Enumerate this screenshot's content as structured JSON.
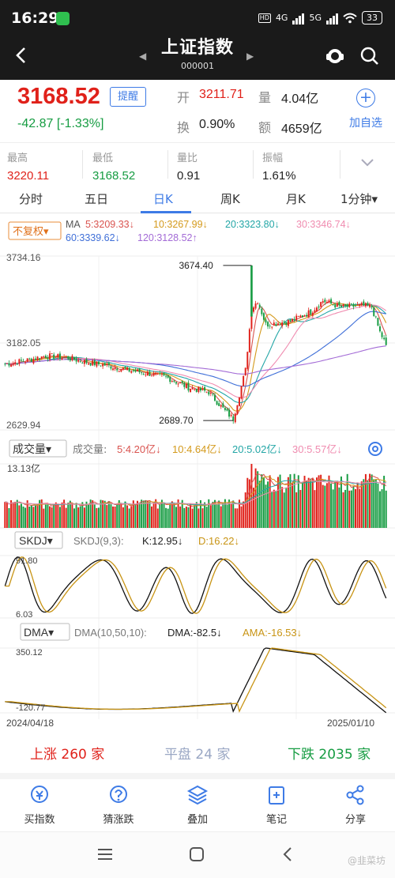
{
  "status_bar": {
    "time": "16:29",
    "network_a": "4G",
    "network_b": "5G",
    "tag_hd": "HD",
    "battery": "33"
  },
  "header": {
    "title": "上证指数",
    "code": "000001"
  },
  "quote": {
    "price": "3168.52",
    "change": "-42.87  [-1.33%]",
    "remind_label": "提醒",
    "open_label": "开",
    "open": "3211.71",
    "volume_label": "量",
    "volume": "4.04亿",
    "turnover_label": "换",
    "turnover": "0.90%",
    "amount_label": "额",
    "amount": "4659亿",
    "add_fav_label": "加自选"
  },
  "stats": [
    {
      "label": "最高",
      "value": "3220.11",
      "color": "#e0211a"
    },
    {
      "label": "最低",
      "value": "3168.52",
      "color": "#169c42"
    },
    {
      "label": "量比",
      "value": "0.91",
      "color": "#222222"
    },
    {
      "label": "振幅",
      "value": "1.61%",
      "color": "#222222"
    }
  ],
  "tabs": [
    "分时",
    "五日",
    "日K",
    "周K",
    "月K",
    "1分钟▾"
  ],
  "active_tab": "日K",
  "chart_data": {
    "type": "candlestick",
    "price_panel": {
      "rights_label": "不复权▾",
      "ma_label": "MA",
      "ma_values": [
        {
          "text": "5:3209.33↓",
          "color": "#d9534f"
        },
        {
          "text": "10:3267.99↓",
          "color": "#d49a1c"
        },
        {
          "text": "20:3323.80↓",
          "color": "#23a6a6"
        },
        {
          "text": "30:3346.74↓",
          "color": "#f08cb0"
        },
        {
          "text": "60:3339.62↓",
          "color": "#3f6fd8"
        },
        {
          "text": "120:3128.52↑",
          "color": "#a36bd6"
        }
      ],
      "ylim": [
        2629.94,
        3734.16
      ],
      "y_ticks": [
        "3734.16",
        "3182.05",
        "2629.94"
      ],
      "annotations": {
        "high": "3674.40",
        "low": "2689.70"
      },
      "ohlc_anchor_prices": [
        3050,
        3070,
        3100,
        3090,
        3060,
        3040,
        3010,
        2990,
        2960,
        2900,
        2870,
        2750,
        2700,
        3010,
        3400,
        3450,
        3300,
        3320,
        3380,
        3450,
        3410,
        3420,
        3410,
        3250,
        3170
      ],
      "ohlc_anchor_index": [
        0,
        10,
        20,
        30,
        40,
        50,
        60,
        70,
        80,
        90,
        100,
        108,
        112,
        118,
        121,
        124,
        128,
        140,
        150,
        156,
        165,
        175,
        180,
        184,
        187
      ]
    },
    "volume_panel": {
      "label": "成交量▾",
      "legend_prefix": "成交量:",
      "ma_values": [
        {
          "text": "5:4.20亿↓",
          "color": "#d9534f"
        },
        {
          "text": "10:4.64亿↓",
          "color": "#d49a1c"
        },
        {
          "text": "20:5.02亿↓",
          "color": "#23a6a6"
        },
        {
          "text": "30:5.57亿↓",
          "color": "#f08cb0"
        }
      ],
      "y_ticks": [
        "13.13亿"
      ]
    },
    "skdj_panel": {
      "label": "SKDJ▾",
      "legend_prefix": "SKDJ(9,3):",
      "k": "K:12.95↓",
      "d": "D:16.22↓",
      "y_ticks": [
        "91.80",
        "6.03"
      ],
      "ylim": [
        6.03,
        91.8
      ]
    },
    "dma_panel": {
      "label": "DMA▾",
      "legend_prefix": "DMA(10,50,10):",
      "dma": "DMA:-82.5↓",
      "ama": "AMA:-16.53↓",
      "y_ticks": [
        "350.12",
        "-120.77"
      ],
      "ylim": [
        -120.77,
        350.12
      ]
    },
    "x_labels": [
      "2024/04/18",
      "2025/01/10"
    ]
  },
  "breadth": {
    "up": "上涨 260 家",
    "flat": "平盘 24 家",
    "down": "下跌 2035 家"
  },
  "actions": [
    {
      "label": "买指数",
      "icon": "buy-index-icon"
    },
    {
      "label": "猜涨跌",
      "icon": "guess-icon"
    },
    {
      "label": "叠加",
      "icon": "layers-icon"
    },
    {
      "label": "笔记",
      "icon": "note-icon"
    },
    {
      "label": "分享",
      "icon": "share-icon"
    }
  ],
  "watermark": "@韭菜坊",
  "colors": {
    "up": "#e0211a",
    "down": "#169c42",
    "accent": "#3e7be6",
    "header": "#1a1a1a"
  }
}
